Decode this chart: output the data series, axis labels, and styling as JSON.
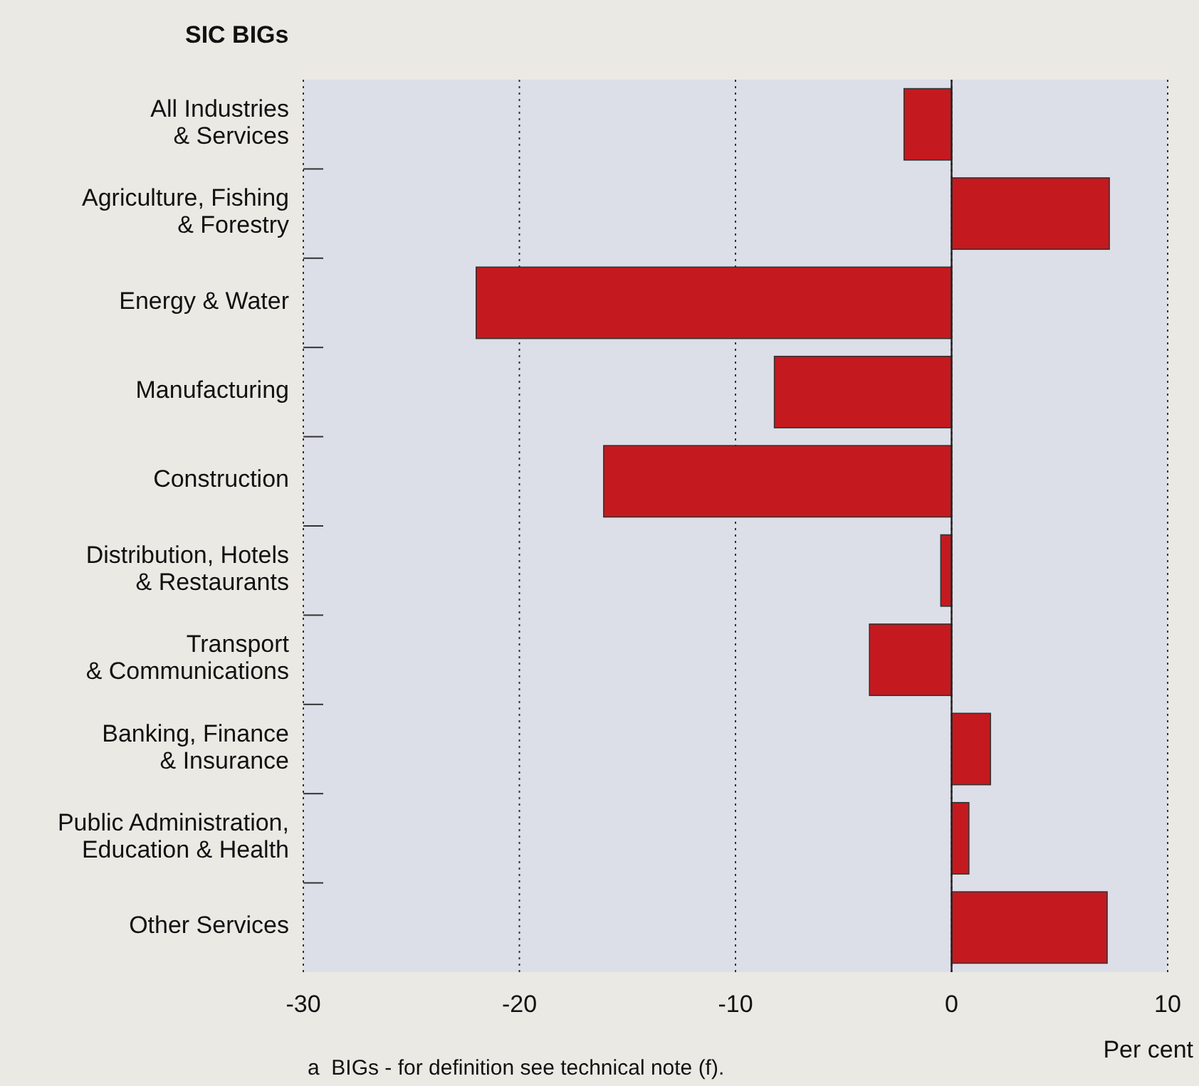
{
  "chart_data": {
    "type": "bar",
    "orientation": "horizontal",
    "title": "SIC BIGs",
    "xlabel": "Per cent",
    "categories": [
      "All Industries\n& Services",
      "Agriculture, Fishing\n& Forestry",
      "Energy & Water",
      "Manufacturing",
      "Construction",
      "Distribution, Hotels\n& Restaurants",
      "Transport\n& Communications",
      "Banking, Finance\n& Insurance",
      "Public Administration,\nEducation & Health",
      "Other Services"
    ],
    "values": [
      -2.2,
      7.3,
      -22.0,
      -8.2,
      -16.1,
      -0.5,
      -3.8,
      1.8,
      0.8,
      7.2
    ],
    "color": "#c41a1f",
    "xlim": [
      -30,
      10
    ],
    "xticks": [
      -30,
      -20,
      -10,
      0,
      10
    ],
    "grid": "x",
    "line_style": "dotted",
    "ref_lines": [
      {
        "axis": "x",
        "value": 0,
        "line_style": "solid",
        "color": "#222222"
      }
    ],
    "annotations": [
      "a  BIGs - for definition see technical note (f)."
    ]
  }
}
